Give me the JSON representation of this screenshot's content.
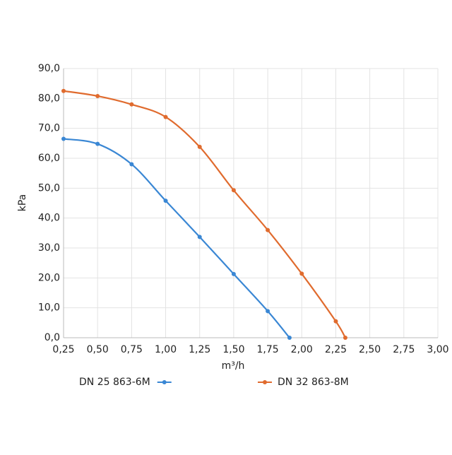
{
  "chart_data": {
    "type": "line",
    "x_label": "m³/h",
    "y_label": "kPa",
    "xlim": [
      0.25,
      3.0
    ],
    "ylim": [
      0,
      90
    ],
    "xticks": [
      {
        "value": 0.25,
        "label": "0,25"
      },
      {
        "value": 0.5,
        "label": "0,50"
      },
      {
        "value": 0.75,
        "label": "0,75"
      },
      {
        "value": 1.0,
        "label": "1,00"
      },
      {
        "value": 1.25,
        "label": "1,25"
      },
      {
        "value": 1.5,
        "label": "1,50"
      },
      {
        "value": 1.75,
        "label": "1,75"
      },
      {
        "value": 2.0,
        "label": "2,00"
      },
      {
        "value": 2.25,
        "label": "2,25"
      },
      {
        "value": 2.5,
        "label": "2,50"
      },
      {
        "value": 2.75,
        "label": "2,75"
      },
      {
        "value": 3.0,
        "label": "3,00"
      }
    ],
    "yticks": [
      {
        "value": 0,
        "label": "0,0"
      },
      {
        "value": 10,
        "label": "10,0"
      },
      {
        "value": 20,
        "label": "20,0"
      },
      {
        "value": 30,
        "label": "30,0"
      },
      {
        "value": 40,
        "label": "40,0"
      },
      {
        "value": 50,
        "label": "50,0"
      },
      {
        "value": 60,
        "label": "60,0"
      },
      {
        "value": 70,
        "label": "70,0"
      },
      {
        "value": 80,
        "label": "80,0"
      },
      {
        "value": 90,
        "label": "90,0"
      }
    ],
    "grid": true,
    "series": [
      {
        "name": "DN 25 863-6M",
        "color": "#3a87d4",
        "x": [
          0.25,
          0.5,
          0.75,
          1.0,
          1.25,
          1.5,
          1.75,
          1.91
        ],
        "values": [
          66.5,
          64.8,
          58,
          45.8,
          33.7,
          21.3,
          8.9,
          0
        ]
      },
      {
        "name": "DN 32 863-8M",
        "color": "#e06b2e",
        "x": [
          0.25,
          0.5,
          0.75,
          1.0,
          1.25,
          1.5,
          1.75,
          2.0,
          2.25,
          2.32
        ],
        "values": [
          82.5,
          80.8,
          78,
          73.8,
          63.8,
          49.3,
          36,
          21.4,
          5.5,
          0
        ]
      }
    ]
  }
}
